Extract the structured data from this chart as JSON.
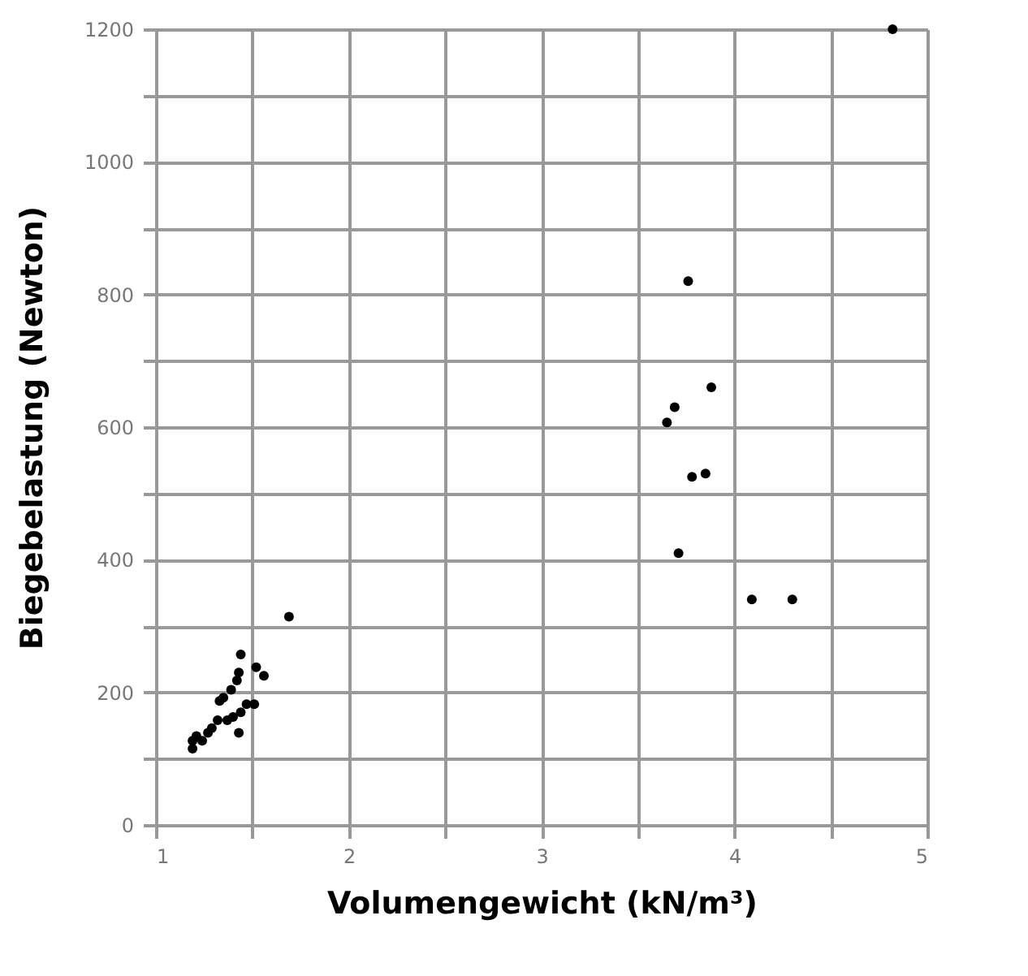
{
  "chart_data": {
    "type": "scatter",
    "xlabel": "Volumengewicht (kN/m³)",
    "ylabel": "Biegebelastung (Newton)",
    "x": [
      3.76,
      3.88,
      3.69,
      3.65,
      3.78,
      3.85,
      3.71,
      4.09,
      4.3,
      4.82,
      1.69,
      1.44,
      1.52,
      1.56,
      1.43,
      1.42,
      1.39,
      1.35,
      1.33,
      1.51,
      1.47,
      1.44,
      1.4,
      1.37,
      1.43,
      1.32,
      1.29,
      1.27,
      1.21,
      1.19,
      1.19,
      1.24
    ],
    "series": [
      {
        "color": "#000000",
        "values": [
          820,
          660,
          630,
          607,
          525,
          530,
          410,
          340,
          340,
          1200,
          314,
          257,
          238,
          225,
          230,
          218,
          204,
          192,
          187,
          182,
          182,
          170,
          163,
          158,
          139,
          158,
          146,
          139,
          134,
          127,
          115,
          127
        ]
      }
    ],
    "xlim": [
      1,
      5
    ],
    "xticks": [
      1,
      {
        "value": 1.5,
        "label": null
      },
      2,
      {
        "value": 2.5,
        "label": null
      },
      3,
      {
        "value": 3.5,
        "label": null
      },
      4,
      {
        "value": 4.5,
        "label": null
      },
      5
    ],
    "ylim": [
      0,
      1200
    ],
    "yticks": [
      0,
      {
        "value": 100,
        "label": null
      },
      200,
      {
        "value": 300,
        "label": null
      },
      400,
      {
        "value": 500,
        "label": null
      },
      600,
      {
        "value": 700,
        "label": null
      },
      800,
      {
        "value": 900,
        "label": null
      },
      1000,
      {
        "value": 1100,
        "label": null
      },
      1200
    ],
    "grid": true,
    "marker": "circle",
    "legend": false
  }
}
